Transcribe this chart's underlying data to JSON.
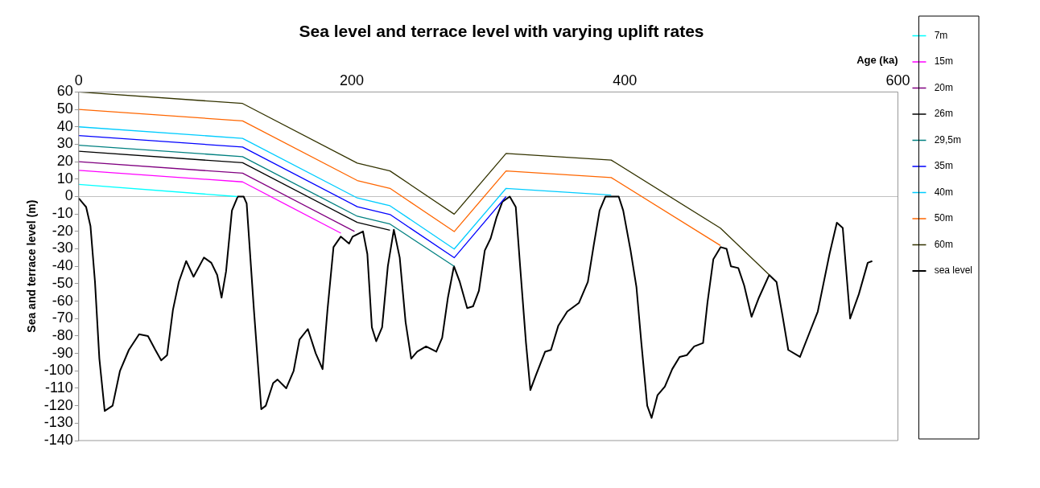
{
  "chart_data": {
    "type": "line",
    "title": "Sea level and terrace level with varying uplift rates",
    "xlabel": "Age (ka)",
    "ylabel": "Sea and terrace level (m)",
    "xlim": [
      0,
      600
    ],
    "xticks": [
      0,
      200,
      400,
      600
    ],
    "ylim": [
      -140,
      60
    ],
    "yticks": [
      -140,
      -130,
      -120,
      -110,
      -100,
      -90,
      -80,
      -70,
      -60,
      -50,
      -40,
      -30,
      -20,
      -10,
      0,
      10,
      20,
      30,
      40,
      50,
      60
    ],
    "grid": false,
    "legend": "right",
    "marker": "none",
    "line_style": "solid",
    "ref_lines": [
      {
        "axis": "y",
        "value": 0,
        "color": "#c0c0c0"
      }
    ],
    "series": [
      {
        "name": "7m",
        "color": "#00ffff",
        "x": [
          0,
          116
        ],
        "values": [
          7,
          0
        ]
      },
      {
        "name": "15m",
        "color": "#ff00ff",
        "x": [
          0,
          120,
          192
        ],
        "values": [
          15,
          8.4,
          -21
        ]
      },
      {
        "name": "20m",
        "color": "#800080",
        "x": [
          0,
          120,
          202
        ],
        "values": [
          20,
          13.4,
          -20
        ]
      },
      {
        "name": "26m",
        "color": "#000000",
        "x": [
          0,
          120,
          204,
          228
        ],
        "values": [
          26,
          19.4,
          -14.8,
          -19.3
        ]
      },
      {
        "name": "29,5m",
        "color": "#008080",
        "x": [
          0,
          120,
          204,
          228,
          275
        ],
        "values": [
          29.5,
          22.9,
          -11.3,
          -15.8,
          -40
        ]
      },
      {
        "name": "35m",
        "color": "#0000ff",
        "x": [
          0,
          120,
          204,
          228,
          275,
          313
        ],
        "values": [
          35,
          28.4,
          -5.8,
          -10.3,
          -35.1,
          0
        ]
      },
      {
        "name": "40m",
        "color": "#00ccff",
        "x": [
          0,
          120,
          204,
          228,
          275,
          313,
          390
        ],
        "values": [
          40,
          33.4,
          -0.8,
          -5.3,
          -30.1,
          4.7,
          0.9
        ]
      },
      {
        "name": "50m",
        "color": "#ff6600",
        "x": [
          0,
          120,
          204,
          228,
          275,
          313,
          390,
          470
        ],
        "values": [
          50,
          43.4,
          9.2,
          4.7,
          -20.1,
          14.7,
          10.9,
          -28.1
        ]
      },
      {
        "name": "60m",
        "color": "#333300",
        "x": [
          0,
          120,
          204,
          228,
          275,
          313,
          390,
          470,
          506
        ],
        "values": [
          60,
          53.4,
          19.2,
          14.7,
          -10.1,
          24.7,
          20.9,
          -18.1,
          -45.1
        ]
      },
      {
        "name": "sea level",
        "color": "#000000",
        "x": [
          0,
          5.4,
          8.6,
          11.9,
          15.1,
          19,
          24.8,
          30.2,
          36.7,
          44.2,
          50.7,
          56.1,
          60.4,
          64.7,
          69,
          73.3,
          78.7,
          84.1,
          91.7,
          97.1,
          101.4,
          104.6,
          107.9,
          112.2,
          116.5,
          120.8,
          123,
          128.4,
          133.7,
          137,
          142.4,
          145.6,
          152,
          157.4,
          161.7,
          167.8,
          173.6,
          178.6,
          182.2,
          186.6,
          191.9,
          198,
          200.6,
          208.2,
          211.4,
          214.7,
          217.9,
          222.2,
          226.4,
          230.8,
          235.1,
          239.4,
          243.5,
          247.9,
          254.4,
          261.9,
          266.2,
          270.4,
          274.8,
          279.1,
          284.5,
          288.8,
          293.1,
          297.4,
          301.7,
          306,
          310.3,
          315.7,
          320.1,
          323.3,
          327.6,
          330.8,
          335.1,
          341.6,
          345.9,
          351.3,
          357.8,
          366.4,
          372.9,
          377.2,
          381.5,
          385.8,
          395.5,
          398.8,
          404.2,
          408.5,
          412.1,
          416.4,
          419.6,
          423.9,
          429.3,
          434.7,
          440.1,
          445.4,
          450.8,
          457.3,
          460.5,
          464.8,
          470.2,
          474.5,
          477.7,
          483.1,
          487.4,
          492.8,
          498.2,
          505.7,
          511.1,
          515.4,
          519.7,
          528.3,
          534.8,
          541.3,
          549.9,
          555.3,
          559.6,
          565,
          571.4,
          577.9,
          581.2
        ],
        "values": [
          -1,
          -6,
          -17,
          -49,
          -93,
          -123,
          -120,
          -100,
          -88,
          -79,
          -80,
          -88,
          -94,
          -91,
          -65,
          -49,
          -37,
          -46,
          -35,
          -38,
          -45,
          -58,
          -43,
          -8,
          0,
          0,
          -4,
          -66,
          -122,
          -120,
          -107,
          -105,
          -110,
          -100,
          -82,
          -76,
          -90,
          -99,
          -65,
          -29,
          -23,
          -27,
          -23,
          -20,
          -33,
          -75,
          -83,
          -75,
          -40,
          -19,
          -35,
          -72,
          -93,
          -89,
          -86,
          -89,
          -81,
          -58,
          -40,
          -49,
          -64,
          -63,
          -54,
          -31,
          -24,
          -12,
          -3,
          0,
          -6,
          -40,
          -84,
          -111,
          -102,
          -89,
          -88,
          -74,
          -66,
          -61,
          -49,
          -28,
          -8,
          0,
          0,
          -8,
          -31,
          -52,
          -84,
          -120,
          -127,
          -114,
          -109,
          -99,
          -92,
          -91,
          -86,
          -84,
          -61,
          -36,
          -29,
          -30,
          -40,
          -41,
          -51,
          -69,
          -58,
          -45,
          -49,
          -68,
          -88,
          -92,
          -79,
          -66,
          -33,
          -15,
          -18,
          -70,
          -56,
          -38,
          -37
        ]
      }
    ]
  }
}
